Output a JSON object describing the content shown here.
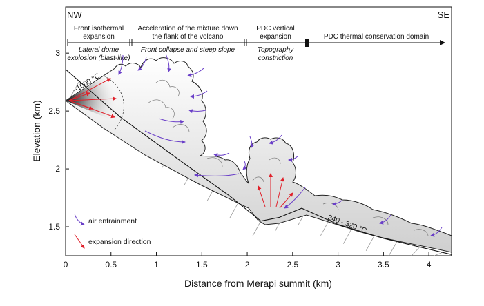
{
  "figure": {
    "corner_left": "NW",
    "corner_right": "SE",
    "x_axis_title": "Distance from Merapi summit (km)",
    "y_axis_title": "Elevation (km)",
    "x_ticks": [
      "0",
      "0.5",
      "1",
      "1.5",
      "2",
      "2.5",
      "3",
      "3.5",
      "4"
    ],
    "y_ticks": [
      "3",
      "2.5",
      "2",
      "1.5"
    ],
    "domains": [
      {
        "title_1": "Front isothermal",
        "title_2": "expansion",
        "sub_1": "Lateral dome",
        "sub_2": "explosion (blast-like)"
      },
      {
        "title_1": "Acceleration of the mixture down",
        "title_2": "the flank of the volcano",
        "sub_1": "Front collapse and steep slope",
        "sub_2": ""
      },
      {
        "title_1": "PDC vertical",
        "title_2": "expansion",
        "sub_1": "Topography",
        "sub_2": "constriction"
      },
      {
        "title_1": "PDC thermal conservation domain",
        "title_2": "",
        "sub_1": "",
        "sub_2": ""
      }
    ],
    "temp_source": "~1000 °C",
    "temp_flow": "240 - 320 °C",
    "legend": {
      "air_label": "air entrainment",
      "exp_label": "expansion direction",
      "air_color": "#6a3fc8",
      "exp_color": "#e0202a"
    }
  },
  "chart_data": {
    "type": "diagram",
    "x_unit": "km",
    "y_unit": "km",
    "xlim": [
      0,
      4.25
    ],
    "ylim": [
      1.25,
      3.4
    ],
    "ground_profile": {
      "x": [
        0,
        0.6,
        1.3,
        1.8,
        2.15,
        2.35,
        2.6,
        3.0,
        3.5,
        4.25
      ],
      "y": [
        2.86,
        2.45,
        2.05,
        1.77,
        1.55,
        1.58,
        1.66,
        1.52,
        1.4,
        1.26
      ]
    }
  }
}
